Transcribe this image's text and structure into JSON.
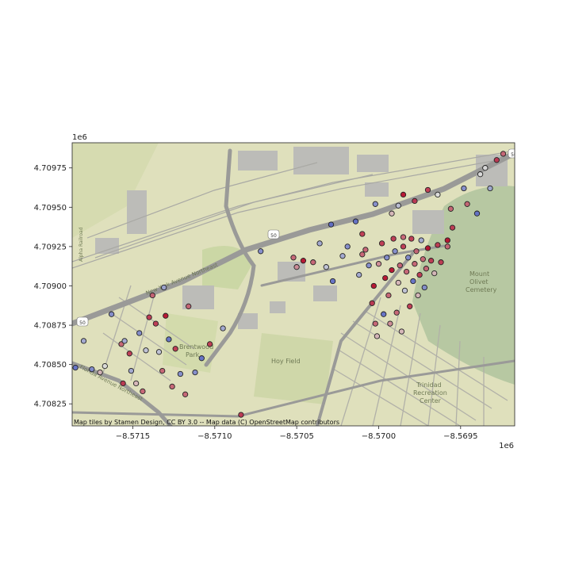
{
  "chart_data": {
    "type": "scatter",
    "title": "",
    "xlabel": "",
    "ylabel": "",
    "x_offset_label": "1e6",
    "y_offset_label": "1e6",
    "xlim": [
      -8.57187,
      -8.56917
    ],
    "ylim": [
      4.70811,
      4.70991
    ],
    "x_ticks": [
      -8.5715,
      -8.571,
      -8.5705,
      -8.57,
      -8.5695
    ],
    "x_tick_labels": [
      "−8.5715",
      "−8.5710",
      "−8.5705",
      "−8.5700",
      "−8.5695"
    ],
    "y_ticks": [
      4.70825,
      4.7085,
      4.70875,
      4.709,
      4.70925,
      4.7095,
      4.70975
    ],
    "y_tick_labels": [
      "4.70825",
      "4.70850",
      "4.70875",
      "4.70900",
      "4.70925",
      "4.70950",
      "4.70975"
    ],
    "colormap": "coolwarm",
    "point_edge_color": "#222222",
    "points": [
      {
        "x": -8.57185,
        "y": 4.70848,
        "c": 0.1
      },
      {
        "x": -8.5718,
        "y": 4.70865,
        "c": 0.3
      },
      {
        "x": -8.57175,
        "y": 4.70847,
        "c": 0.2
      },
      {
        "x": -8.5717,
        "y": 4.70845,
        "c": 0.6
      },
      {
        "x": -8.57167,
        "y": 4.70849,
        "c": 0.5
      },
      {
        "x": -8.57163,
        "y": 4.70882,
        "c": 0.2
      },
      {
        "x": -8.57157,
        "y": 4.70863,
        "c": 0.8
      },
      {
        "x": -8.57156,
        "y": 4.70838,
        "c": 0.9
      },
      {
        "x": -8.57155,
        "y": 4.70865,
        "c": 0.3
      },
      {
        "x": -8.57152,
        "y": 4.70857,
        "c": 0.9
      },
      {
        "x": -8.57151,
        "y": 4.70846,
        "c": 0.3
      },
      {
        "x": -8.57148,
        "y": 4.70838,
        "c": 0.6
      },
      {
        "x": -8.57146,
        "y": 4.7087,
        "c": 0.2
      },
      {
        "x": -8.57144,
        "y": 4.70833,
        "c": 0.8
      },
      {
        "x": -8.57142,
        "y": 4.70859,
        "c": 0.4
      },
      {
        "x": -8.5714,
        "y": 4.7088,
        "c": 0.9
      },
      {
        "x": -8.57138,
        "y": 4.70894,
        "c": 0.8
      },
      {
        "x": -8.57136,
        "y": 4.70876,
        "c": 0.9
      },
      {
        "x": -8.57134,
        "y": 4.70858,
        "c": 0.4
      },
      {
        "x": -8.57132,
        "y": 4.70846,
        "c": 0.8
      },
      {
        "x": -8.57131,
        "y": 4.70899,
        "c": 0.3
      },
      {
        "x": -8.5713,
        "y": 4.70881,
        "c": 1.0
      },
      {
        "x": -8.57128,
        "y": 4.70866,
        "c": 0.1
      },
      {
        "x": -8.57126,
        "y": 4.70836,
        "c": 0.8
      },
      {
        "x": -8.57124,
        "y": 4.7086,
        "c": 0.9
      },
      {
        "x": -8.57121,
        "y": 4.70844,
        "c": 0.2
      },
      {
        "x": -8.57118,
        "y": 4.70831,
        "c": 0.8
      },
      {
        "x": -8.57116,
        "y": 4.70887,
        "c": 0.8
      },
      {
        "x": -8.57112,
        "y": 4.70845,
        "c": 0.2
      },
      {
        "x": -8.57108,
        "y": 4.70854,
        "c": 0.1
      },
      {
        "x": -8.57103,
        "y": 4.70863,
        "c": 0.9
      },
      {
        "x": -8.57095,
        "y": 4.70873,
        "c": 0.3
      },
      {
        "x": -8.57084,
        "y": 4.70818,
        "c": 0.9
      },
      {
        "x": -8.57072,
        "y": 4.70922,
        "c": 0.2
      },
      {
        "x": -8.57052,
        "y": 4.70918,
        "c": 0.8
      },
      {
        "x": -8.5705,
        "y": 4.70912,
        "c": 0.7
      },
      {
        "x": -8.57046,
        "y": 4.70916,
        "c": 1.0
      },
      {
        "x": -8.5704,
        "y": 4.70915,
        "c": 0.8
      },
      {
        "x": -8.57036,
        "y": 4.70927,
        "c": 0.3
      },
      {
        "x": -8.57032,
        "y": 4.70912,
        "c": 0.4
      },
      {
        "x": -8.57029,
        "y": 4.70939,
        "c": 0.1
      },
      {
        "x": -8.57028,
        "y": 4.70903,
        "c": 0.1
      },
      {
        "x": -8.57022,
        "y": 4.70919,
        "c": 0.3
      },
      {
        "x": -8.57019,
        "y": 4.70925,
        "c": 0.2
      },
      {
        "x": -8.57014,
        "y": 4.70941,
        "c": 0.1
      },
      {
        "x": -8.57012,
        "y": 4.70907,
        "c": 0.3
      },
      {
        "x": -8.5701,
        "y": 4.7092,
        "c": 0.8
      },
      {
        "x": -8.57008,
        "y": 4.70923,
        "c": 0.8
      },
      {
        "x": -8.57006,
        "y": 4.70913,
        "c": 0.2
      },
      {
        "x": -8.57004,
        "y": 4.70889,
        "c": 0.9
      },
      {
        "x": -8.57003,
        "y": 4.709,
        "c": 1.0
      },
      {
        "x": -8.57002,
        "y": 4.70876,
        "c": 0.8
      },
      {
        "x": -8.57001,
        "y": 4.70868,
        "c": 0.6
      },
      {
        "x": -8.57,
        "y": 4.70914,
        "c": 0.7
      },
      {
        "x": -8.56998,
        "y": 4.70927,
        "c": 0.9
      },
      {
        "x": -8.56997,
        "y": 4.70882,
        "c": 0.1
      },
      {
        "x": -8.56996,
        "y": 4.70905,
        "c": 1.0
      },
      {
        "x": -8.56995,
        "y": 4.70918,
        "c": 0.2
      },
      {
        "x": -8.56994,
        "y": 4.70894,
        "c": 0.8
      },
      {
        "x": -8.56993,
        "y": 4.70876,
        "c": 0.7
      },
      {
        "x": -8.56992,
        "y": 4.7091,
        "c": 1.0
      },
      {
        "x": -8.56991,
        "y": 4.7093,
        "c": 0.9
      },
      {
        "x": -8.5699,
        "y": 4.70922,
        "c": 0.2
      },
      {
        "x": -8.56989,
        "y": 4.70883,
        "c": 0.8
      },
      {
        "x": -8.56988,
        "y": 4.70902,
        "c": 0.6
      },
      {
        "x": -8.56987,
        "y": 4.70913,
        "c": 0.8
      },
      {
        "x": -8.56986,
        "y": 4.70871,
        "c": 0.6
      },
      {
        "x": -8.56985,
        "y": 4.70925,
        "c": 0.9
      },
      {
        "x": -8.56984,
        "y": 4.70897,
        "c": 0.4
      },
      {
        "x": -8.56983,
        "y": 4.70909,
        "c": 0.8
      },
      {
        "x": -8.56982,
        "y": 4.70918,
        "c": 0.2
      },
      {
        "x": -8.56981,
        "y": 4.70887,
        "c": 0.9
      },
      {
        "x": -8.5698,
        "y": 4.7093,
        "c": 0.9
      },
      {
        "x": -8.56979,
        "y": 4.70903,
        "c": 0.1
      },
      {
        "x": -8.56978,
        "y": 4.70914,
        "c": 0.8
      },
      {
        "x": -8.56977,
        "y": 4.70922,
        "c": 0.8
      },
      {
        "x": -8.56976,
        "y": 4.70894,
        "c": 0.6
      },
      {
        "x": -8.56975,
        "y": 4.70907,
        "c": 0.9
      },
      {
        "x": -8.56974,
        "y": 4.70929,
        "c": 0.3
      },
      {
        "x": -8.56973,
        "y": 4.70917,
        "c": 0.8
      },
      {
        "x": -8.56972,
        "y": 4.70899,
        "c": 0.2
      },
      {
        "x": -8.56971,
        "y": 4.70911,
        "c": 0.8
      },
      {
        "x": -8.5697,
        "y": 4.70924,
        "c": 1.0
      },
      {
        "x": -8.56968,
        "y": 4.70916,
        "c": 0.9
      },
      {
        "x": -8.56966,
        "y": 4.70908,
        "c": 0.6
      },
      {
        "x": -8.56964,
        "y": 4.70926,
        "c": 0.9
      },
      {
        "x": -8.56962,
        "y": 4.70915,
        "c": 0.9
      },
      {
        "x": -8.56958,
        "y": 4.70925,
        "c": 0.8
      },
      {
        "x": -8.56955,
        "y": 4.70937,
        "c": 0.9
      },
      {
        "x": -8.56956,
        "y": 4.70949,
        "c": 0.8
      },
      {
        "x": -8.56948,
        "y": 4.70962,
        "c": 0.2
      },
      {
        "x": -8.56938,
        "y": 4.70971,
        "c": 0.5
      },
      {
        "x": -8.56928,
        "y": 4.7098,
        "c": 0.9
      },
      {
        "x": -8.56932,
        "y": 4.70962,
        "c": 0.3
      },
      {
        "x": -8.5694,
        "y": 4.70946,
        "c": 0.1
      },
      {
        "x": -8.56946,
        "y": 4.70952,
        "c": 0.8
      },
      {
        "x": -8.56935,
        "y": 4.70975,
        "c": 0.5
      },
      {
        "x": -8.56924,
        "y": 4.70984,
        "c": 0.8
      },
      {
        "x": -8.56985,
        "y": 4.70958,
        "c": 1.0
      },
      {
        "x": -8.56978,
        "y": 4.70954,
        "c": 0.9
      },
      {
        "x": -8.5697,
        "y": 4.70961,
        "c": 0.9
      },
      {
        "x": -8.56964,
        "y": 4.70958,
        "c": 0.5
      },
      {
        "x": -8.57002,
        "y": 4.70952,
        "c": 0.2
      },
      {
        "x": -8.56992,
        "y": 4.70946,
        "c": 0.6
      },
      {
        "x": -8.56988,
        "y": 4.70951,
        "c": 0.4
      },
      {
        "x": -8.5701,
        "y": 4.70933,
        "c": 0.9
      },
      {
        "x": -8.56985,
        "y": 4.70931,
        "c": 0.8
      },
      {
        "x": -8.56958,
        "y": 4.70929,
        "c": 1.0
      }
    ]
  },
  "map": {
    "label_highway": "New York Avenue Northeast",
    "label_florida": "Florida Avenue Northeast",
    "label_brentwood": "Brentwood Park",
    "label_hoy": "Hoy Field",
    "label_trinidad": "Trinidad Recreation Center",
    "label_olivet": "Mount Olivet Cemetery",
    "label_rail": "Alpha Railroad",
    "shield_50": "50",
    "attribution": "Map tiles by Stamen Design, CC BY 3.0 -- Map data (C) OpenStreetMap contributors"
  },
  "colors": {
    "map_base": "#dfe0bc",
    "map_green": "#c6d3a9",
    "cemetery": "#b7c8a2",
    "road_major": "#9a9a98",
    "road_minor": "#b7b5ad",
    "building": "#bcbcb8",
    "cmap_low": "#3b4cc0",
    "cmap_mid": "#dddddd",
    "cmap_high": "#b40426"
  }
}
